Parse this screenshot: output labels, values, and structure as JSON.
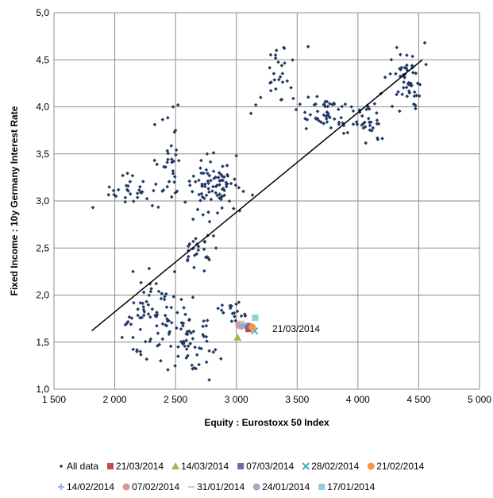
{
  "chart_data": {
    "type": "scatter",
    "xlabel": "Equity : Eurostoxx 50 Index",
    "ylabel": "Fixed Income : 10y Germany Interest Rate",
    "xlim": [
      1500,
      5000
    ],
    "ylim": [
      1.0,
      5.0
    ],
    "x_ticks": [
      1500,
      2000,
      2500,
      3000,
      3500,
      4000,
      4500,
      5000
    ],
    "x_tick_labels": [
      "1 500",
      "2 000",
      "2 500",
      "3 000",
      "3 500",
      "4 000",
      "4 500",
      "5 000"
    ],
    "y_ticks": [
      1.0,
      1.5,
      2.0,
      2.5,
      3.0,
      3.5,
      4.0,
      4.5,
      5.0
    ],
    "y_tick_labels": [
      "1,0",
      "1,5",
      "2,0",
      "2,5",
      "3,0",
      "3,5",
      "4,0",
      "4,5",
      "5,0"
    ],
    "grid": true,
    "legend_position": "bottom",
    "annotation": "21/03/2014",
    "trendline": {
      "x": [
        1810,
        4530
      ],
      "y": [
        1.62,
        4.5
      ],
      "color": "#000000"
    },
    "clusters": [
      {
        "cx": 2120,
        "cy": 3.1,
        "sx": 120,
        "sy": 0.16,
        "n": 25
      },
      {
        "cx": 2420,
        "cy": 3.35,
        "sx": 110,
        "sy": 0.3,
        "n": 34
      },
      {
        "cx": 2840,
        "cy": 3.18,
        "sx": 150,
        "sy": 0.17,
        "n": 80
      },
      {
        "cx": 2690,
        "cy": 2.55,
        "sx": 110,
        "sy": 0.22,
        "n": 30
      },
      {
        "cx": 2300,
        "cy": 1.7,
        "sx": 170,
        "sy": 0.32,
        "n": 70
      },
      {
        "cx": 2620,
        "cy": 1.55,
        "sx": 140,
        "sy": 0.25,
        "n": 55
      },
      {
        "cx": 2950,
        "cy": 1.83,
        "sx": 110,
        "sy": 0.09,
        "n": 18
      },
      {
        "cx": 3370,
        "cy": 4.35,
        "sx": 70,
        "sy": 0.18,
        "n": 24
      },
      {
        "cx": 3720,
        "cy": 3.95,
        "sx": 150,
        "sy": 0.14,
        "n": 50
      },
      {
        "cx": 4080,
        "cy": 3.85,
        "sx": 110,
        "sy": 0.16,
        "n": 35
      },
      {
        "cx": 4400,
        "cy": 4.3,
        "sx": 110,
        "sy": 0.2,
        "n": 50
      }
    ],
    "series": [
      {
        "name": "All data",
        "marker": "diamond",
        "color": "#1F3864",
        "x": [
          1820,
          1990,
          2010,
          2150,
          2290,
          2480,
          2500,
          2490,
          2520,
          2760,
          2780,
          3000,
          3120,
          3330,
          3390,
          3590,
          4550,
          4560,
          2060,
          2100,
          2150,
          2190,
          2210,
          3160,
          3200
        ],
        "y": [
          2.93,
          3.11,
          3.05,
          2.25,
          2.12,
          4.0,
          3.75,
          3.2,
          4.02,
          3.5,
          2.78,
          3.48,
          3.93,
          4.6,
          4.63,
          4.64,
          4.68,
          4.45,
          1.55,
          1.7,
          1.55,
          1.85,
          1.4,
          4.02,
          4.1
        ]
      },
      {
        "name": "21/03/2014",
        "marker": "square",
        "color": "#C0504D",
        "x": [
          3100
        ],
        "y": [
          1.64
        ]
      },
      {
        "name": "14/03/2014",
        "marker": "triangle",
        "color": "#9BBB59",
        "x": [
          3010
        ],
        "y": [
          1.55
        ]
      },
      {
        "name": "07/03/2014",
        "marker": "square",
        "color": "#8064A2",
        "x": [
          3095
        ],
        "y": [
          1.67
        ]
      },
      {
        "name": "28/02/2014",
        "marker": "x",
        "color": "#4BACC6",
        "x": [
          3150
        ],
        "y": [
          1.62
        ]
      },
      {
        "name": "21/02/2014",
        "marker": "circle",
        "color": "#F79646",
        "x": [
          3130
        ],
        "y": [
          1.66
        ]
      },
      {
        "name": "14/02/2014",
        "marker": "plus",
        "color": "#95B3D7",
        "x": [
          3060
        ],
        "y": [
          1.69
        ]
      },
      {
        "name": "07/02/2014",
        "marker": "circle",
        "color": "#D99694",
        "x": [
          3020
        ],
        "y": [
          1.68
        ]
      },
      {
        "name": "31/01/2014",
        "marker": "dash",
        "color": "#C3D69B",
        "x": [
          3040
        ],
        "y": [
          1.72
        ]
      },
      {
        "name": "24/01/2014",
        "marker": "circle",
        "color": "#B3A2C7",
        "x": [
          3040
        ],
        "y": [
          1.67
        ]
      },
      {
        "name": "17/01/2014",
        "marker": "square",
        "color": "#93CDDD",
        "x": [
          3155
        ],
        "y": [
          1.76
        ]
      }
    ]
  }
}
